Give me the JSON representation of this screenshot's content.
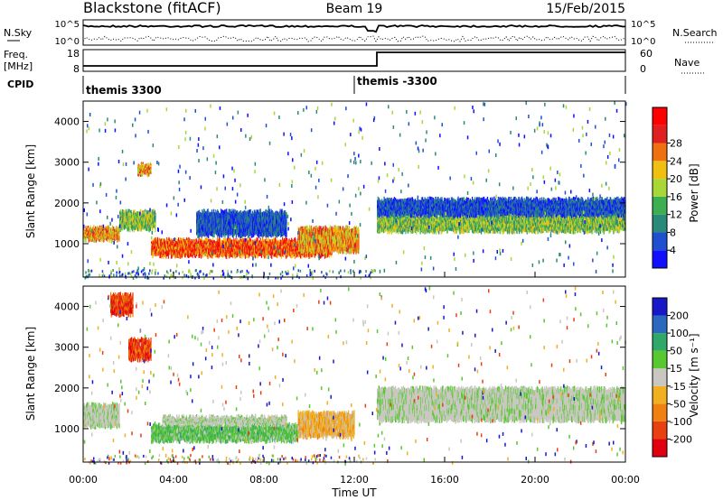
{
  "header": {
    "station": "Blackstone (fitACF)",
    "beam": "Beam 19",
    "date": "15/Feb/2015"
  },
  "noise_panel": {
    "left_label": "N.Sky",
    "left_tick_top": "10^5",
    "left_tick_bottom": "10^0",
    "right_tick_top": "10^5",
    "right_tick_bottom": "10^0",
    "right_label": "N.Search"
  },
  "freq_panel": {
    "left_label_1": "Freq.",
    "left_label_2": "[MHz]",
    "left_tick_top": "18",
    "left_tick_bottom": "8",
    "right_tick_top": "60",
    "right_tick_bottom": "0",
    "right_label": "Nave"
  },
  "cpid_panel": {
    "label": "CPID",
    "segments": [
      {
        "label": "themis 3300",
        "start_hour": 0,
        "end_hour": 12
      },
      {
        "label": "themis -3300",
        "start_hour": 12,
        "end_hour": 24
      }
    ]
  },
  "x_axis": {
    "label": "Time UT",
    "ticks": [
      "00:00",
      "04:00",
      "08:00",
      "12:00",
      "16:00",
      "20:00",
      "00:00"
    ]
  },
  "y_axis": {
    "label": "Slant Range [km]",
    "ticks": [
      "1000",
      "2000",
      "3000",
      "4000"
    ]
  },
  "power_colorbar": {
    "label": "Power [dB]",
    "ticks": [
      "4",
      "8",
      "12",
      "16",
      "20",
      "24",
      "28"
    ],
    "colors": [
      "#1010ff",
      "#2050d0",
      "#2a8a7a",
      "#3cb050",
      "#a8d838",
      "#f0c010",
      "#f07010",
      "#e02020",
      "#ff0000"
    ]
  },
  "velocity_colorbar": {
    "label": "Velocity [m s⁻¹]",
    "ticks": [
      "200",
      "100",
      "50",
      "15",
      "-15",
      "-50",
      "-100",
      "-200"
    ],
    "colors": [
      "#1818c8",
      "#2d68c0",
      "#30a868",
      "#58c830",
      "#c8c8c0",
      "#f0b020",
      "#f08010",
      "#e84010",
      "#e00010"
    ]
  },
  "chart_data": {
    "type": "heatmap",
    "x_range_hours": [
      0,
      24
    ],
    "y_range_km": [
      180,
      4500
    ],
    "panels": [
      {
        "name": "power",
        "bands": [
          {
            "t0": 0.0,
            "t1": 1.6,
            "r0": 1100,
            "r1": 1400,
            "v": "high"
          },
          {
            "t0": 1.6,
            "t1": 3.2,
            "r0": 1350,
            "r1": 1800,
            "v": "med"
          },
          {
            "t0": 2.4,
            "t1": 3.0,
            "r0": 2700,
            "r1": 2950,
            "v": "high"
          },
          {
            "t0": 3.0,
            "t1": 11.0,
            "r0": 700,
            "r1": 1100,
            "v": "max"
          },
          {
            "t0": 5.0,
            "t1": 9.0,
            "r0": 1200,
            "r1": 1800,
            "v": "low"
          },
          {
            "t0": 9.5,
            "t1": 12.2,
            "r0": 800,
            "r1": 1400,
            "v": "high"
          },
          {
            "t0": 13.0,
            "t1": 24.0,
            "r0": 1300,
            "r1": 1700,
            "v": "med"
          },
          {
            "t0": 13.0,
            "t1": 24.0,
            "r0": 1700,
            "r1": 2100,
            "v": "low"
          }
        ]
      },
      {
        "name": "velocity",
        "bands": [
          {
            "t0": 0.0,
            "t1": 1.6,
            "r0": 1050,
            "r1": 1600,
            "v": "zero"
          },
          {
            "t0": 1.2,
            "t1": 2.2,
            "r0": 3800,
            "r1": 4300,
            "v": "neg"
          },
          {
            "t0": 2.0,
            "t1": 3.0,
            "r0": 2700,
            "r1": 3200,
            "v": "neg"
          },
          {
            "t0": 3.0,
            "t1": 9.5,
            "r0": 700,
            "r1": 1100,
            "v": "pos"
          },
          {
            "t0": 9.5,
            "t1": 12.0,
            "r0": 800,
            "r1": 1400,
            "v": "negsmall"
          },
          {
            "t0": 3.5,
            "t1": 9.0,
            "r0": 1100,
            "r1": 1300,
            "v": "zero"
          },
          {
            "t0": 13.0,
            "t1": 24.0,
            "r0": 1200,
            "r1": 2000,
            "v": "zero"
          }
        ]
      }
    ]
  }
}
